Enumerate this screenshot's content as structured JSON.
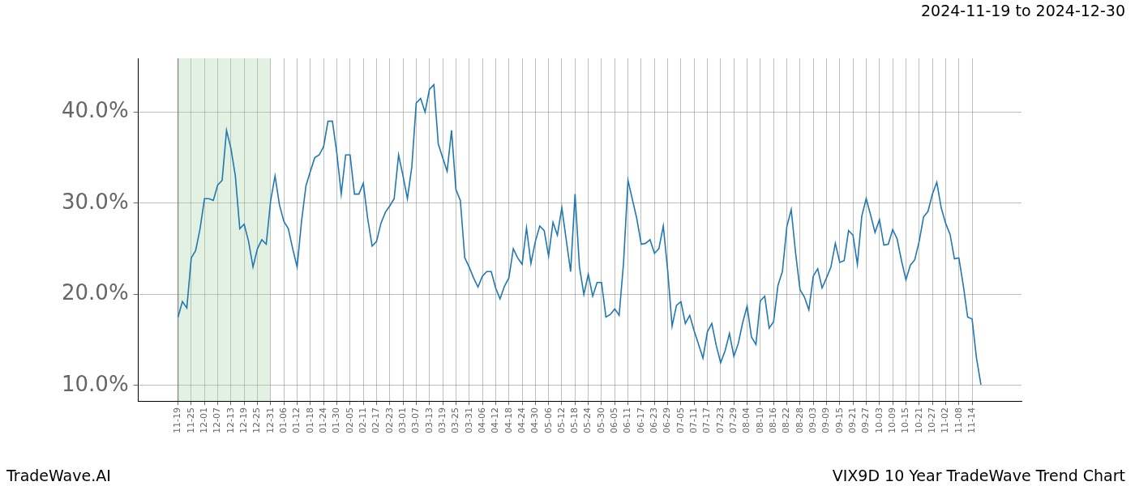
{
  "chart_data": {
    "type": "line",
    "title": "2024-11-19 to 2024-12-30",
    "footer_left": "TradeWave.AI",
    "footer_right": "VIX9D 10 Year TradeWave Trend Chart",
    "color": "#1f77b4",
    "grid": true,
    "shaded_range": [
      "11-19",
      "12-31"
    ],
    "ylim": [
      8.3,
      45.9
    ],
    "yticks": [
      {
        "value": 10,
        "label": "10.0%"
      },
      {
        "value": 20,
        "label": "20.0%"
      },
      {
        "value": 30,
        "label": "30.0%"
      },
      {
        "value": 40,
        "label": "40.0%"
      }
    ],
    "categories": [
      "11-19",
      null,
      null,
      "11-25",
      null,
      null,
      "12-01",
      null,
      null,
      "12-07",
      null,
      null,
      "12-13",
      null,
      null,
      "12-19",
      null,
      null,
      "12-25",
      null,
      null,
      "12-31",
      null,
      null,
      "01-06",
      null,
      null,
      "01-12",
      null,
      null,
      "01-18",
      null,
      null,
      "01-24",
      null,
      null,
      "01-30",
      null,
      null,
      "02-05",
      null,
      null,
      "02-11",
      null,
      null,
      "02-17",
      null,
      null,
      "02-23",
      null,
      null,
      "03-01",
      null,
      null,
      "03-07",
      null,
      null,
      "03-13",
      null,
      null,
      "03-19",
      null,
      null,
      "03-25",
      null,
      null,
      "03-31",
      null,
      null,
      "04-06",
      null,
      null,
      "04-12",
      null,
      null,
      "04-18",
      null,
      null,
      "04-24",
      null,
      null,
      "04-30",
      null,
      null,
      "05-06",
      null,
      null,
      "05-12",
      null,
      null,
      "05-18",
      null,
      null,
      "05-24",
      null,
      null,
      "05-30",
      null,
      null,
      "06-05",
      null,
      null,
      "06-11",
      null,
      null,
      "06-17",
      null,
      null,
      "06-23",
      null,
      null,
      "06-29",
      null,
      null,
      "07-05",
      null,
      null,
      "07-11",
      null,
      null,
      "07-17",
      null,
      null,
      "07-23",
      null,
      null,
      "07-29",
      null,
      null,
      "08-04",
      null,
      null,
      "08-10",
      null,
      null,
      "08-16",
      null,
      null,
      "08-22",
      null,
      null,
      "08-28",
      null,
      null,
      "09-03",
      null,
      null,
      "09-09",
      null,
      null,
      "09-15",
      null,
      null,
      "09-21",
      null,
      null,
      "09-27",
      null,
      null,
      "10-03",
      null,
      null,
      "10-09",
      null,
      null,
      "10-15",
      null,
      null,
      "10-21",
      null,
      null,
      "10-27",
      null,
      null,
      "11-02",
      null,
      null,
      "11-08",
      null,
      null,
      "11-14",
      null,
      null
    ],
    "values": [
      17.5,
      19.2,
      18.5,
      24,
      24.8,
      27.2,
      30.5,
      30.5,
      30.3,
      32,
      32.5,
      38,
      36,
      33,
      27.2,
      27.7,
      25.8,
      23,
      25,
      26,
      25.5,
      30.3,
      33,
      29.8,
      28,
      27.2,
      25,
      23,
      28,
      31.9,
      33.5,
      35,
      35.3,
      36.2,
      39,
      39,
      35.5,
      31,
      35.3,
      35.3,
      31,
      31,
      32.2,
      28.3,
      25.3,
      25.8,
      27.8,
      29,
      29.7,
      30.5,
      35.3,
      33,
      30.5,
      34,
      41,
      41.5,
      40,
      42.5,
      43,
      36.5,
      35,
      33.5,
      38,
      31.5,
      30.3,
      24,
      23,
      21.8,
      20.8,
      22,
      22.5,
      22.5,
      20.7,
      19.5,
      20.9,
      21.8,
      25,
      24,
      23.3,
      27.3,
      23.4,
      25.8,
      27.5,
      27,
      24.2,
      27.9,
      26.5,
      29.5,
      26,
      22.5,
      31,
      23,
      20,
      22.2,
      19.8,
      21.3,
      21.3,
      17.5,
      17.8,
      18.4,
      17.7,
      23.5,
      32.5,
      30.4,
      28.3,
      25.5,
      25.6,
      26,
      24.5,
      25,
      27.5,
      22.6,
      16.5,
      18.8,
      19.2,
      16.8,
      17.7,
      16,
      14.5,
      13,
      15.9,
      16.8,
      14.4,
      12.5,
      13.8,
      15.7,
      13.2,
      14.6,
      16.9,
      18.7,
      15.3,
      14.5,
      19.3,
      19.8,
      16.3,
      17,
      21,
      22.5,
      27.4,
      29.3,
      24.5,
      20.5,
      19.7,
      18.3,
      22,
      22.8,
      20.7,
      21.8,
      23,
      25.6,
      23.5,
      23.7,
      27,
      26.5,
      23.3,
      28.6,
      30.5,
      28.7,
      26.8,
      28.2,
      25.4,
      25.5,
      27.1,
      26.1,
      23.7,
      21.6,
      23.2,
      23.8,
      25.8,
      28.5,
      29.1,
      31,
      32.3,
      29.5,
      27.8,
      26.6,
      23.9,
      24,
      21,
      17.5,
      17.3,
      13,
      10.1
    ]
  }
}
